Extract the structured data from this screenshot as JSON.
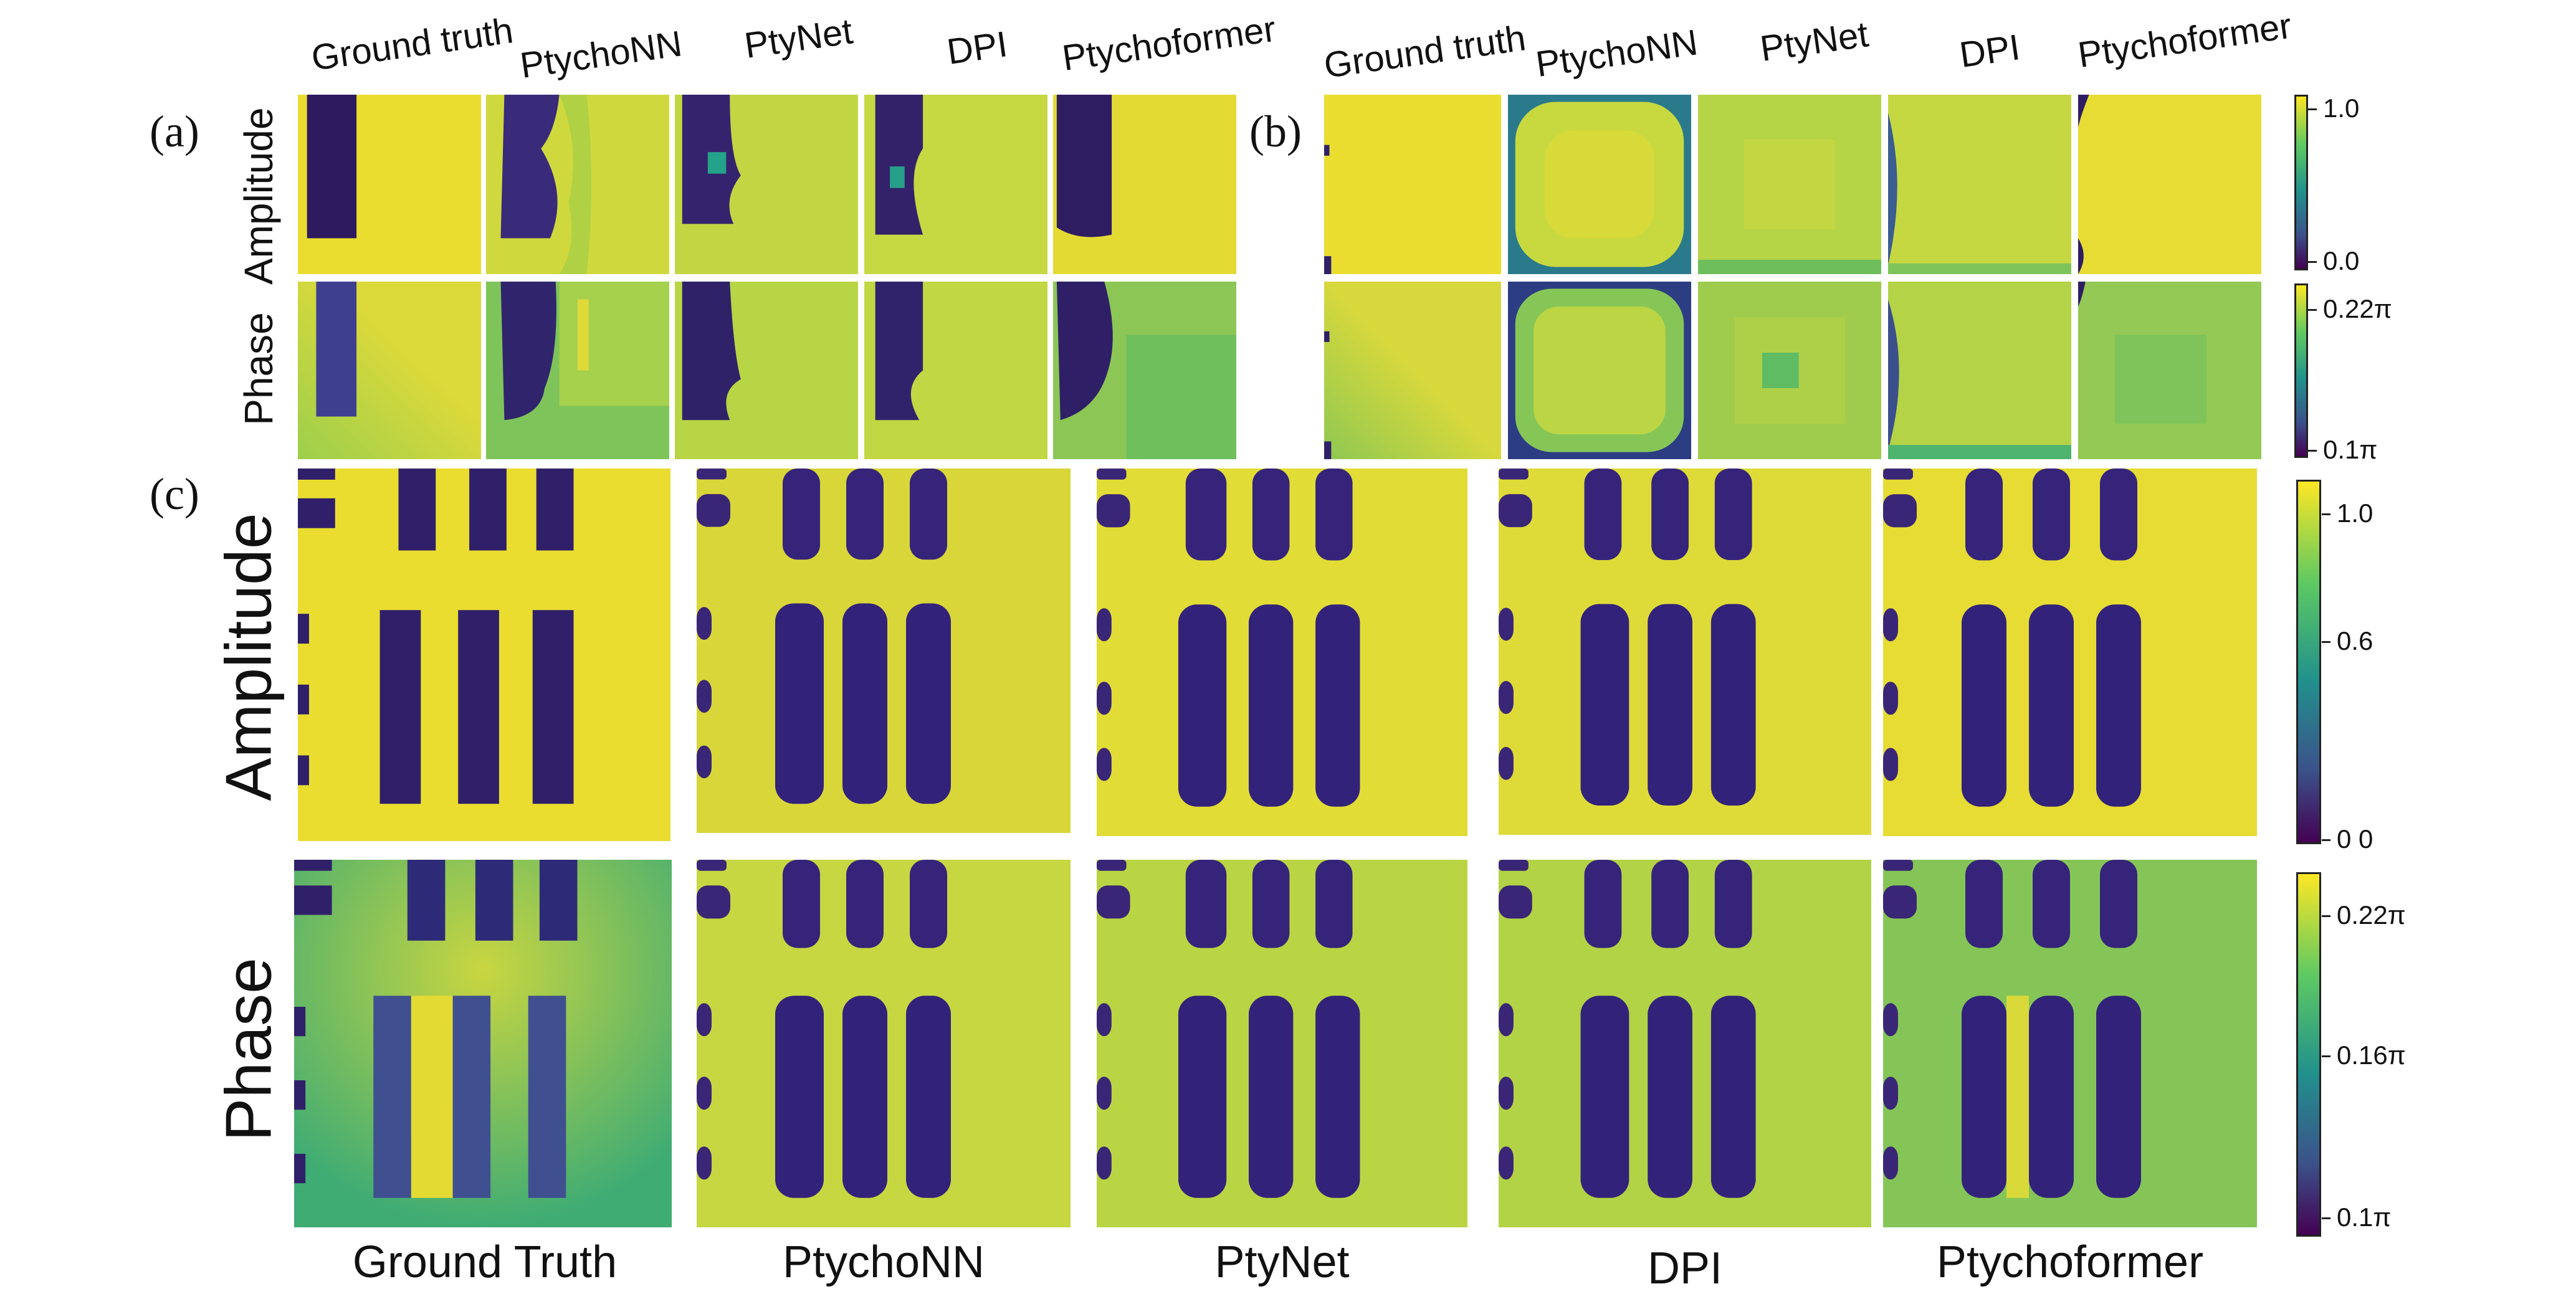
{
  "panel_labels": {
    "a": "(a)",
    "b": "(b)",
    "c": "(c)"
  },
  "columns_a": [
    "Ground truth",
    "PtychoNN",
    "PtyNet",
    "DPI",
    "Ptychoformer"
  ],
  "columns_b": [
    "Ground truth",
    "PtychoNN",
    "PtyNet",
    "DPI",
    "Ptychoformer"
  ],
  "columns_c": [
    "Ground Truth",
    "PtychoNN",
    "PtyNet",
    "DPI",
    "Ptychoformer"
  ],
  "row_labels": {
    "amplitude": "Amplitude",
    "phase": "Phase"
  },
  "colorbars": {
    "ab_amplitude": {
      "top": "1.0",
      "bottom": "0.0"
    },
    "ab_phase": {
      "top": "0.22π",
      "bottom": "0.1π"
    },
    "c_amplitude": {
      "top": "1.0",
      "mid": "0.6",
      "bottom": "0 0"
    },
    "c_phase": {
      "top": "0.22π",
      "mid": "0.16π",
      "bottom": "0.1π"
    }
  },
  "colormap": {
    "low": "#3b0f70",
    "high": "#e8dd3a",
    "mid": "#21918c"
  }
}
